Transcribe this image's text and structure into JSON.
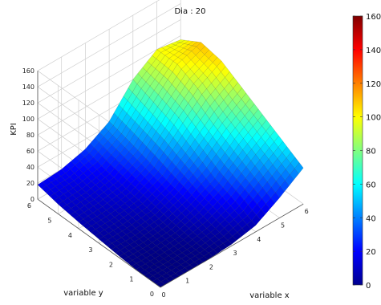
{
  "chart_data": {
    "type": "surface3d",
    "title": "Dia : 20",
    "xlabel": "variable x",
    "ylabel": "variable y",
    "zlabel": "KPI",
    "xlim": [
      0,
      6
    ],
    "ylim": [
      0,
      6
    ],
    "zlim": [
      0,
      160
    ],
    "x_ticks": [
      "0",
      "1",
      "2",
      "3",
      "4",
      "5",
      "6"
    ],
    "y_ticks": [
      "0",
      "1",
      "2",
      "3",
      "4",
      "5",
      "6"
    ],
    "z_ticks": [
      "0",
      "20",
      "40",
      "60",
      "80",
      "100",
      "120",
      "140",
      "160"
    ],
    "colorbar": {
      "min": 0,
      "max": 160,
      "ticks": [
        "0",
        "20",
        "40",
        "60",
        "80",
        "100",
        "120",
        "140",
        "160"
      ],
      "colormap": "jet"
    },
    "grid": true,
    "surface": {
      "x": [
        0,
        1,
        2,
        3,
        4,
        5,
        6
      ],
      "y": [
        0,
        1,
        2,
        3,
        4,
        5,
        6
      ],
      "z": [
        [
          0,
          0,
          0,
          2,
          8,
          25,
          45
        ],
        [
          0,
          0,
          2,
          8,
          20,
          40,
          60
        ],
        [
          2,
          2,
          5,
          15,
          30,
          55,
          75
        ],
        [
          5,
          6,
          10,
          22,
          45,
          70,
          90
        ],
        [
          8,
          10,
          15,
          30,
          60,
          88,
          105
        ],
        [
          12,
          14,
          20,
          38,
          70,
          100,
          110
        ],
        [
          18,
          20,
          28,
          45,
          80,
          100,
          95
        ]
      ]
    }
  }
}
